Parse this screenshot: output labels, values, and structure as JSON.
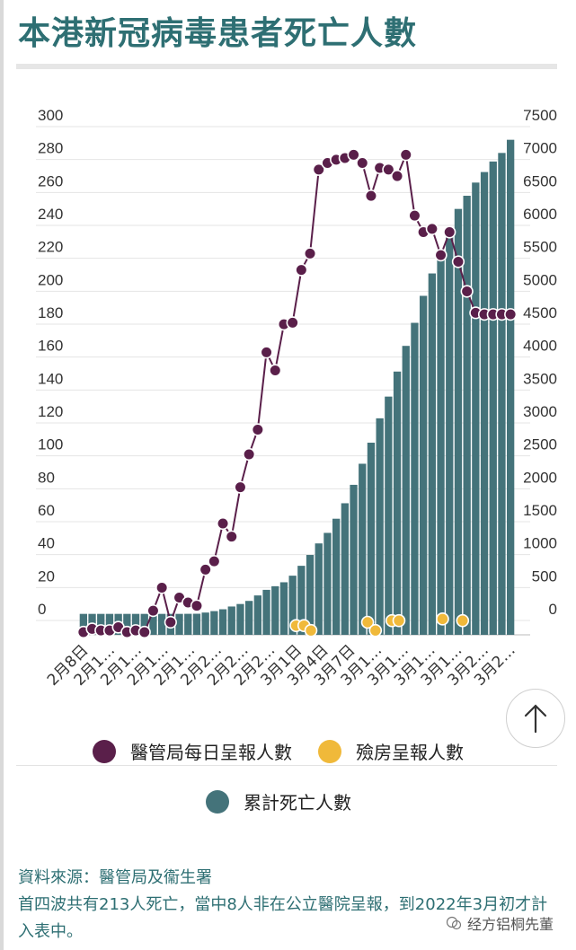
{
  "page": {
    "title": "本港新冠病毒患者死亡人數",
    "source": "資料來源：醫管局及衞生署",
    "note": "首四波共有213人死亡，當中8人非在公立醫院呈報，到2022年3月初才計入表中。",
    "watermark": "经方铝桐先董"
  },
  "colors": {
    "daily": "#5a1f4a",
    "home": "#f0b93a",
    "cumulative": "#44737a",
    "title": "#2e6f73"
  },
  "legend": {
    "daily": "醫管局每日呈報人數",
    "home": "殮房呈報人數",
    "cumulative": "累計死亡人數"
  },
  "chart_data": {
    "type": "bar+line",
    "left_axis": {
      "ticks": [
        "0",
        "20",
        "40",
        "60",
        "80",
        "100",
        "120",
        "140",
        "160",
        "180",
        "200",
        "220",
        "240",
        "260",
        "280",
        "300"
      ],
      "ylim": [
        0,
        300
      ]
    },
    "right_axis": {
      "ticks": [
        "0",
        "500",
        "1000",
        "1500",
        "2000",
        "2500",
        "3000",
        "3500",
        "4000",
        "4500",
        "5000",
        "5500",
        "6000",
        "6500",
        "7000",
        "7500"
      ],
      "ylim": [
        0,
        7500
      ]
    },
    "x_labels": [
      "2月8日",
      "2月1…",
      "2月1…",
      "2月1…",
      "2月1…",
      "2月2…",
      "2月2…",
      "2月2…",
      "3月1日",
      "3月4日",
      "3月7日",
      "3月1…",
      "3月1…",
      "3月1…",
      "3月1…",
      "3月2…",
      "3月2…"
    ],
    "cumulative": [
      100,
      100,
      100,
      100,
      100,
      100,
      100,
      100,
      100,
      100,
      100,
      100,
      101,
      102,
      120,
      142,
      170,
      212,
      250,
      297,
      380,
      465,
      520,
      580,
      680,
      830,
      995,
      1170,
      1330,
      1545,
      1780,
      2060,
      2380,
      2700,
      3070,
      3400,
      3780,
      4170,
      4520,
      4930,
      5270,
      5600,
      5950,
      6250,
      6450,
      6650,
      6810,
      6970,
      7100,
      7300
    ],
    "daily_positions": [
      0,
      1,
      2,
      3,
      4,
      5,
      6,
      7,
      8,
      9,
      10,
      11,
      12,
      13,
      14,
      15,
      16,
      17,
      18,
      19,
      20,
      21,
      22,
      23,
      24,
      25,
      26,
      27,
      28,
      29,
      30,
      31,
      32,
      33,
      34,
      35,
      36,
      37,
      38,
      39,
      40,
      41,
      42,
      43,
      44,
      45,
      46,
      47,
      48,
      49
    ],
    "daily": [
      0,
      2,
      1,
      1,
      3,
      0,
      1,
      0,
      13,
      27,
      6,
      21,
      18,
      16,
      38,
      43,
      66,
      58,
      88,
      108,
      123,
      170,
      159,
      187,
      188,
      220,
      230,
      281,
      285,
      287,
      288,
      290,
      285,
      265,
      282,
      281,
      277,
      290,
      253,
      243,
      245,
      229,
      243,
      225,
      207,
      194,
      193,
      193,
      193,
      193
    ],
    "home": [
      {
        "x": 24.4,
        "y": 4
      },
      {
        "x": 25.3,
        "y": 4
      },
      {
        "x": 26.1,
        "y": 1
      },
      {
        "x": 32.6,
        "y": 6
      },
      {
        "x": 33.5,
        "y": 1
      },
      {
        "x": 35.4,
        "y": 7
      },
      {
        "x": 36.2,
        "y": 7
      },
      {
        "x": 41.2,
        "y": 8
      },
      {
        "x": 43.5,
        "y": 7
      }
    ]
  }
}
